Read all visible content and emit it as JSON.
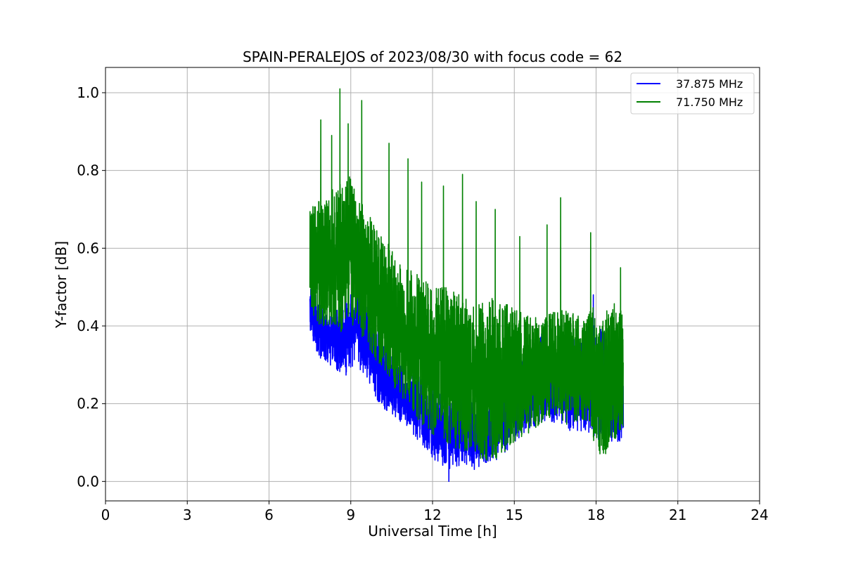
{
  "chart_data": {
    "type": "line",
    "title": "SPAIN-PERALEJOS of 2023/08/30 with focus code = 62",
    "xlabel": "Universal Time [h]",
    "ylabel": "Y-factor [dB]",
    "xlim": [
      0,
      24
    ],
    "ylim": [
      -0.05,
      1.065
    ],
    "xticks": [
      0,
      3,
      6,
      9,
      12,
      15,
      18,
      21,
      24
    ],
    "xtick_labels": [
      "0",
      "3",
      "6",
      "9",
      "12",
      "15",
      "18",
      "21",
      "24"
    ],
    "yticks": [
      0.0,
      0.2,
      0.4,
      0.6,
      0.8,
      1.0
    ],
    "ytick_labels": [
      "0.0",
      "0.2",
      "0.4",
      "0.6",
      "0.8",
      "1.0"
    ],
    "grid": true,
    "legend_position": "top-right",
    "series": [
      {
        "name": "37.875 MHz",
        "color": "#0000ff",
        "envelope": {
          "x": [
            7.5,
            7.8,
            8.2,
            8.6,
            8.9,
            9.2,
            9.6,
            10.0,
            10.5,
            11.0,
            11.5,
            12.0,
            12.5,
            13.0,
            13.5,
            14.0,
            14.5,
            15.0,
            15.5,
            16.0,
            16.5,
            17.0,
            17.5,
            17.9,
            18.2,
            18.6,
            19.0
          ],
          "upper": [
            0.55,
            0.47,
            0.42,
            0.45,
            0.47,
            0.5,
            0.45,
            0.4,
            0.33,
            0.3,
            0.27,
            0.25,
            0.24,
            0.23,
            0.22,
            0.22,
            0.24,
            0.3,
            0.33,
            0.38,
            0.35,
            0.36,
            0.38,
            0.42,
            0.39,
            0.37,
            0.35
          ],
          "lower": [
            0.39,
            0.32,
            0.3,
            0.28,
            0.27,
            0.3,
            0.26,
            0.2,
            0.17,
            0.14,
            0.1,
            0.06,
            0.03,
            0.04,
            0.03,
            0.04,
            0.06,
            0.1,
            0.13,
            0.15,
            0.15,
            0.13,
            0.13,
            0.12,
            0.1,
            0.1,
            0.1
          ],
          "spikes": [
            [
              7.5,
              0.47
            ],
            [
              8.9,
              0.5
            ],
            [
              9.0,
              0.48
            ],
            [
              12.6,
              0.0
            ],
            [
              16.0,
              0.38
            ],
            [
              17.9,
              0.48
            ]
          ]
        }
      },
      {
        "name": "71.750 MHz",
        "color": "#008000",
        "envelope": {
          "x": [
            7.5,
            7.8,
            8.2,
            8.6,
            8.9,
            9.2,
            9.6,
            10.0,
            10.5,
            11.0,
            11.5,
            12.0,
            12.5,
            13.0,
            13.5,
            14.0,
            14.5,
            15.0,
            15.5,
            16.0,
            16.5,
            17.0,
            17.5,
            17.9,
            18.2,
            18.6,
            19.0
          ],
          "upper": [
            0.7,
            0.72,
            0.74,
            0.78,
            0.8,
            0.74,
            0.7,
            0.65,
            0.6,
            0.56,
            0.53,
            0.5,
            0.5,
            0.48,
            0.47,
            0.48,
            0.46,
            0.45,
            0.43,
            0.42,
            0.45,
            0.44,
            0.42,
            0.45,
            0.42,
            0.46,
            0.45
          ],
          "lower": [
            0.45,
            0.4,
            0.4,
            0.38,
            0.38,
            0.4,
            0.35,
            0.3,
            0.25,
            0.2,
            0.15,
            0.12,
            0.1,
            0.08,
            0.06,
            0.05,
            0.06,
            0.1,
            0.12,
            0.15,
            0.16,
            0.14,
            0.16,
            0.1,
            0.05,
            0.1,
            0.12
          ],
          "spikes": [
            [
              7.9,
              0.93
            ],
            [
              8.3,
              0.89
            ],
            [
              8.6,
              1.01
            ],
            [
              8.9,
              0.92
            ],
            [
              9.4,
              0.98
            ],
            [
              10.4,
              0.87
            ],
            [
              11.1,
              0.83
            ],
            [
              11.6,
              0.77
            ],
            [
              12.4,
              0.76
            ],
            [
              13.1,
              0.79
            ],
            [
              13.6,
              0.72
            ],
            [
              14.3,
              0.7
            ],
            [
              15.2,
              0.63
            ],
            [
              16.2,
              0.66
            ],
            [
              16.7,
              0.73
            ],
            [
              17.8,
              0.64
            ],
            [
              18.9,
              0.55
            ]
          ]
        }
      }
    ]
  }
}
